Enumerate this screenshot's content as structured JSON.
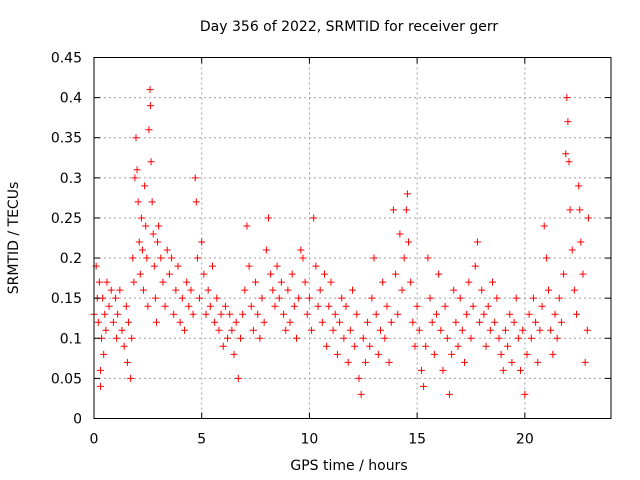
{
  "chart_data": {
    "type": "scatter",
    "title": "Day 356 of 2022, SRMTID for receiver gerr",
    "xlabel": "GPS time / hours",
    "ylabel": "SRMTID / TECUs",
    "xlim": [
      0,
      24
    ],
    "ylim": [
      0,
      0.45
    ],
    "xticks": [
      0,
      5,
      10,
      15,
      20
    ],
    "xtick_labels": [
      "0",
      "5",
      "10",
      "15",
      "20"
    ],
    "yticks": [
      0,
      0.05,
      0.1,
      0.15,
      0.2,
      0.25,
      0.3,
      0.35,
      0.4,
      0.45
    ],
    "ytick_labels": [
      "0",
      "0.05",
      "0.1",
      "0.15",
      "0.2",
      "0.25",
      "0.3",
      "0.35",
      "0.4",
      "0.45"
    ],
    "grid": true,
    "legend": "none",
    "marker": "+",
    "series": [
      {
        "name": "gerr",
        "color": "#ff0000",
        "points": [
          [
            0.0,
            0.13
          ],
          [
            0.1,
            0.19
          ],
          [
            0.15,
            0.15
          ],
          [
            0.2,
            0.12
          ],
          [
            0.25,
            0.17
          ],
          [
            0.3,
            0.06
          ],
          [
            0.3,
            0.04
          ],
          [
            0.35,
            0.1
          ],
          [
            0.4,
            0.15
          ],
          [
            0.45,
            0.08
          ],
          [
            0.5,
            0.13
          ],
          [
            0.55,
            0.11
          ],
          [
            0.6,
            0.17
          ],
          [
            0.7,
            0.14
          ],
          [
            0.8,
            0.16
          ],
          [
            0.9,
            0.12
          ],
          [
            1.0,
            0.15
          ],
          [
            1.05,
            0.1
          ],
          [
            1.1,
            0.13
          ],
          [
            1.2,
            0.16
          ],
          [
            1.3,
            0.11
          ],
          [
            1.4,
            0.09
          ],
          [
            1.5,
            0.14
          ],
          [
            1.55,
            0.07
          ],
          [
            1.6,
            0.12
          ],
          [
            1.7,
            0.05
          ],
          [
            1.75,
            0.1
          ],
          [
            1.8,
            0.2
          ],
          [
            1.85,
            0.17
          ],
          [
            1.9,
            0.3
          ],
          [
            1.95,
            0.35
          ],
          [
            2.0,
            0.31
          ],
          [
            2.05,
            0.27
          ],
          [
            2.1,
            0.22
          ],
          [
            2.15,
            0.18
          ],
          [
            2.2,
            0.25
          ],
          [
            2.25,
            0.21
          ],
          [
            2.3,
            0.16
          ],
          [
            2.35,
            0.29
          ],
          [
            2.4,
            0.24
          ],
          [
            2.45,
            0.2
          ],
          [
            2.5,
            0.14
          ],
          [
            2.55,
            0.36
          ],
          [
            2.6,
            0.41
          ],
          [
            2.62,
            0.39
          ],
          [
            2.65,
            0.32
          ],
          [
            2.7,
            0.27
          ],
          [
            2.75,
            0.23
          ],
          [
            2.8,
            0.19
          ],
          [
            2.85,
            0.15
          ],
          [
            2.9,
            0.12
          ],
          [
            2.95,
            0.22
          ],
          [
            3.0,
            0.24
          ],
          [
            3.1,
            0.2
          ],
          [
            3.2,
            0.17
          ],
          [
            3.3,
            0.14
          ],
          [
            3.4,
            0.21
          ],
          [
            3.5,
            0.18
          ],
          [
            3.6,
            0.2
          ],
          [
            3.7,
            0.13
          ],
          [
            3.8,
            0.16
          ],
          [
            3.9,
            0.19
          ],
          [
            4.0,
            0.12
          ],
          [
            4.1,
            0.15
          ],
          [
            4.2,
            0.11
          ],
          [
            4.3,
            0.17
          ],
          [
            4.4,
            0.14
          ],
          [
            4.5,
            0.16
          ],
          [
            4.6,
            0.13
          ],
          [
            4.7,
            0.3
          ],
          [
            4.75,
            0.27
          ],
          [
            4.8,
            0.2
          ],
          [
            4.9,
            0.15
          ],
          [
            5.0,
            0.22
          ],
          [
            5.1,
            0.18
          ],
          [
            5.2,
            0.13
          ],
          [
            5.3,
            0.16
          ],
          [
            5.4,
            0.14
          ],
          [
            5.5,
            0.19
          ],
          [
            5.6,
            0.12
          ],
          [
            5.7,
            0.15
          ],
          [
            5.8,
            0.11
          ],
          [
            5.9,
            0.13
          ],
          [
            6.0,
            0.09
          ],
          [
            6.1,
            0.14
          ],
          [
            6.2,
            0.1
          ],
          [
            6.3,
            0.13
          ],
          [
            6.4,
            0.11
          ],
          [
            6.5,
            0.08
          ],
          [
            6.6,
            0.12
          ],
          [
            6.7,
            0.05
          ],
          [
            6.8,
            0.1
          ],
          [
            6.9,
            0.13
          ],
          [
            7.0,
            0.16
          ],
          [
            7.1,
            0.24
          ],
          [
            7.2,
            0.19
          ],
          [
            7.3,
            0.14
          ],
          [
            7.4,
            0.11
          ],
          [
            7.5,
            0.17
          ],
          [
            7.6,
            0.13
          ],
          [
            7.7,
            0.1
          ],
          [
            7.8,
            0.15
          ],
          [
            7.9,
            0.12
          ],
          [
            8.0,
            0.21
          ],
          [
            8.1,
            0.25
          ],
          [
            8.2,
            0.18
          ],
          [
            8.3,
            0.16
          ],
          [
            8.4,
            0.14
          ],
          [
            8.5,
            0.19
          ],
          [
            8.6,
            0.15
          ],
          [
            8.7,
            0.17
          ],
          [
            8.8,
            0.13
          ],
          [
            8.9,
            0.11
          ],
          [
            9.0,
            0.16
          ],
          [
            9.1,
            0.12
          ],
          [
            9.2,
            0.18
          ],
          [
            9.3,
            0.14
          ],
          [
            9.4,
            0.1
          ],
          [
            9.5,
            0.15
          ],
          [
            9.6,
            0.21
          ],
          [
            9.7,
            0.2
          ],
          [
            9.8,
            0.17
          ],
          [
            9.9,
            0.13
          ],
          [
            10.0,
            0.15
          ],
          [
            10.1,
            0.11
          ],
          [
            10.2,
            0.25
          ],
          [
            10.3,
            0.19
          ],
          [
            10.4,
            0.14
          ],
          [
            10.5,
            0.16
          ],
          [
            10.6,
            0.12
          ],
          [
            10.7,
            0.18
          ],
          [
            10.8,
            0.09
          ],
          [
            10.9,
            0.14
          ],
          [
            11.0,
            0.17
          ],
          [
            11.1,
            0.11
          ],
          [
            11.2,
            0.13
          ],
          [
            11.3,
            0.08
          ],
          [
            11.4,
            0.12
          ],
          [
            11.5,
            0.15
          ],
          [
            11.6,
            0.1
          ],
          [
            11.7,
            0.14
          ],
          [
            11.8,
            0.07
          ],
          [
            11.9,
            0.11
          ],
          [
            12.0,
            0.16
          ],
          [
            12.1,
            0.09
          ],
          [
            12.2,
            0.13
          ],
          [
            12.3,
            0.05
          ],
          [
            12.4,
            0.03
          ],
          [
            12.5,
            0.1
          ],
          [
            12.6,
            0.07
          ],
          [
            12.7,
            0.12
          ],
          [
            12.8,
            0.09
          ],
          [
            12.9,
            0.15
          ],
          [
            13.0,
            0.2
          ],
          [
            13.1,
            0.13
          ],
          [
            13.2,
            0.08
          ],
          [
            13.3,
            0.11
          ],
          [
            13.4,
            0.17
          ],
          [
            13.5,
            0.1
          ],
          [
            13.6,
            0.14
          ],
          [
            13.7,
            0.07
          ],
          [
            13.8,
            0.12
          ],
          [
            13.9,
            0.26
          ],
          [
            14.0,
            0.18
          ],
          [
            14.1,
            0.13
          ],
          [
            14.2,
            0.23
          ],
          [
            14.3,
            0.16
          ],
          [
            14.4,
            0.2
          ],
          [
            14.5,
            0.26
          ],
          [
            14.55,
            0.28
          ],
          [
            14.6,
            0.22
          ],
          [
            14.7,
            0.17
          ],
          [
            14.8,
            0.12
          ],
          [
            14.9,
            0.09
          ],
          [
            15.0,
            0.14
          ],
          [
            15.1,
            0.11
          ],
          [
            15.2,
            0.06
          ],
          [
            15.3,
            0.04
          ],
          [
            15.4,
            0.09
          ],
          [
            15.5,
            0.2
          ],
          [
            15.6,
            0.15
          ],
          [
            15.7,
            0.12
          ],
          [
            15.8,
            0.08
          ],
          [
            15.9,
            0.13
          ],
          [
            16.0,
            0.18
          ],
          [
            16.1,
            0.11
          ],
          [
            16.2,
            0.06
          ],
          [
            16.3,
            0.14
          ],
          [
            16.4,
            0.1
          ],
          [
            16.5,
            0.03
          ],
          [
            16.6,
            0.08
          ],
          [
            16.7,
            0.16
          ],
          [
            16.8,
            0.12
          ],
          [
            16.9,
            0.09
          ],
          [
            17.0,
            0.15
          ],
          [
            17.1,
            0.11
          ],
          [
            17.2,
            0.07
          ],
          [
            17.3,
            0.13
          ],
          [
            17.4,
            0.17
          ],
          [
            17.5,
            0.1
          ],
          [
            17.6,
            0.14
          ],
          [
            17.7,
            0.19
          ],
          [
            17.8,
            0.22
          ],
          [
            17.9,
            0.12
          ],
          [
            18.0,
            0.16
          ],
          [
            18.1,
            0.13
          ],
          [
            18.2,
            0.09
          ],
          [
            18.3,
            0.14
          ],
          [
            18.4,
            0.11
          ],
          [
            18.5,
            0.17
          ],
          [
            18.6,
            0.12
          ],
          [
            18.7,
            0.15
          ],
          [
            18.8,
            0.1
          ],
          [
            18.9,
            0.08
          ],
          [
            19.0,
            0.06
          ],
          [
            19.1,
            0.11
          ],
          [
            19.2,
            0.09
          ],
          [
            19.3,
            0.13
          ],
          [
            19.4,
            0.07
          ],
          [
            19.5,
            0.12
          ],
          [
            19.6,
            0.15
          ],
          [
            19.7,
            0.1
          ],
          [
            19.8,
            0.06
          ],
          [
            19.9,
            0.11
          ],
          [
            20.0,
            0.03
          ],
          [
            20.1,
            0.08
          ],
          [
            20.2,
            0.13
          ],
          [
            20.3,
            0.1
          ],
          [
            20.4,
            0.15
          ],
          [
            20.5,
            0.12
          ],
          [
            20.6,
            0.07
          ],
          [
            20.7,
            0.11
          ],
          [
            20.8,
            0.14
          ],
          [
            20.9,
            0.24
          ],
          [
            21.0,
            0.2
          ],
          [
            21.1,
            0.16
          ],
          [
            21.2,
            0.11
          ],
          [
            21.3,
            0.08
          ],
          [
            21.4,
            0.13
          ],
          [
            21.5,
            0.1
          ],
          [
            21.6,
            0.15
          ],
          [
            21.7,
            0.12
          ],
          [
            21.8,
            0.18
          ],
          [
            21.9,
            0.33
          ],
          [
            21.95,
            0.4
          ],
          [
            22.0,
            0.37
          ],
          [
            22.05,
            0.32
          ],
          [
            22.1,
            0.26
          ],
          [
            22.2,
            0.21
          ],
          [
            22.3,
            0.16
          ],
          [
            22.4,
            0.13
          ],
          [
            22.5,
            0.29
          ],
          [
            22.55,
            0.26
          ],
          [
            22.6,
            0.22
          ],
          [
            22.7,
            0.18
          ],
          [
            22.8,
            0.07
          ],
          [
            22.9,
            0.11
          ],
          [
            22.95,
            0.25
          ]
        ]
      }
    ]
  }
}
